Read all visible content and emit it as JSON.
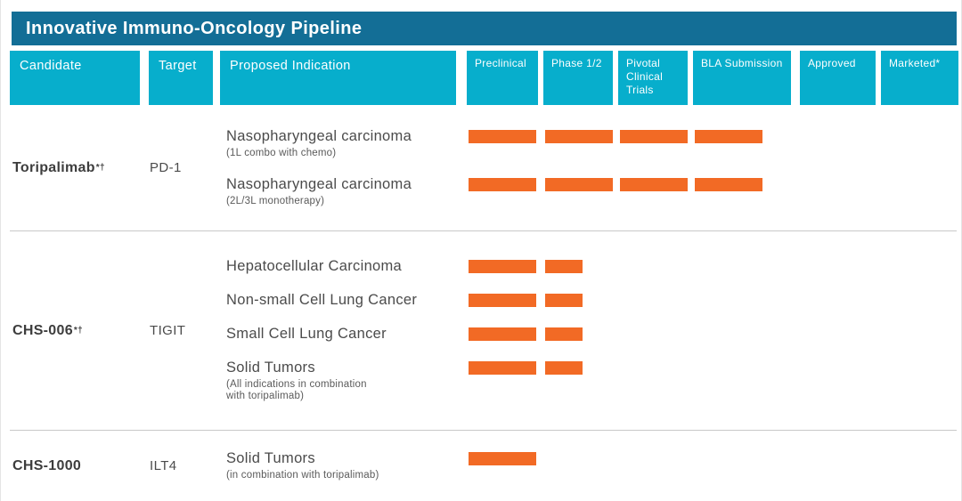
{
  "title": "Innovative Immuno-Oncology Pipeline",
  "colors": {
    "title_bar": "#136e96",
    "column_header": "#07aecc",
    "progress_bar": "#f26a25",
    "separator": "#c9c9c9"
  },
  "chart_data": {
    "type": "gantt",
    "title": "Innovative Immuno-Oncology Pipeline",
    "column_headers": {
      "candidate": "Candidate",
      "target": "Target",
      "indication": "Proposed Indication"
    },
    "phases": [
      "Preclinical",
      "Phase 1/2",
      "Pivotal Clinical Trials",
      "BLA Submission",
      "Approved",
      "Marketed*"
    ],
    "legend_position": "none",
    "groups": [
      {
        "candidate": {
          "name": "Toripalimab",
          "sup": "*†"
        },
        "target": "PD-1",
        "rows": [
          {
            "indication": "Nasopharyngeal carcinoma",
            "note": "(1L combo with chemo)",
            "segments": [
              1,
              1,
              1,
              1
            ]
          },
          {
            "indication": "Nasopharyngeal carcinoma",
            "note": "(2L/3L monotherapy)",
            "segments": [
              1,
              1,
              1,
              1
            ]
          }
        ]
      },
      {
        "candidate": {
          "name": "CHS-006",
          "sup": "*†"
        },
        "target": "TIGIT",
        "rows": [
          {
            "indication": "Hepatocellular Carcinoma",
            "note": "",
            "segments": [
              1,
              0.55
            ]
          },
          {
            "indication": "Non-small Cell Lung Cancer",
            "note": "",
            "segments": [
              1,
              0.55
            ]
          },
          {
            "indication": "Small Cell Lung Cancer",
            "note": "",
            "segments": [
              1,
              0.55
            ]
          },
          {
            "indication": "Solid Tumors",
            "note": "(All indications in combination\nwith toripalimab)",
            "segments": [
              1,
              0.55
            ]
          }
        ]
      },
      {
        "candidate": {
          "name": "CHS-1000",
          "sup": ""
        },
        "target": "ILT4",
        "rows": [
          {
            "indication": "Solid Tumors",
            "note": "(in combination with toripalimab)",
            "segments": [
              1
            ]
          }
        ]
      }
    ]
  }
}
